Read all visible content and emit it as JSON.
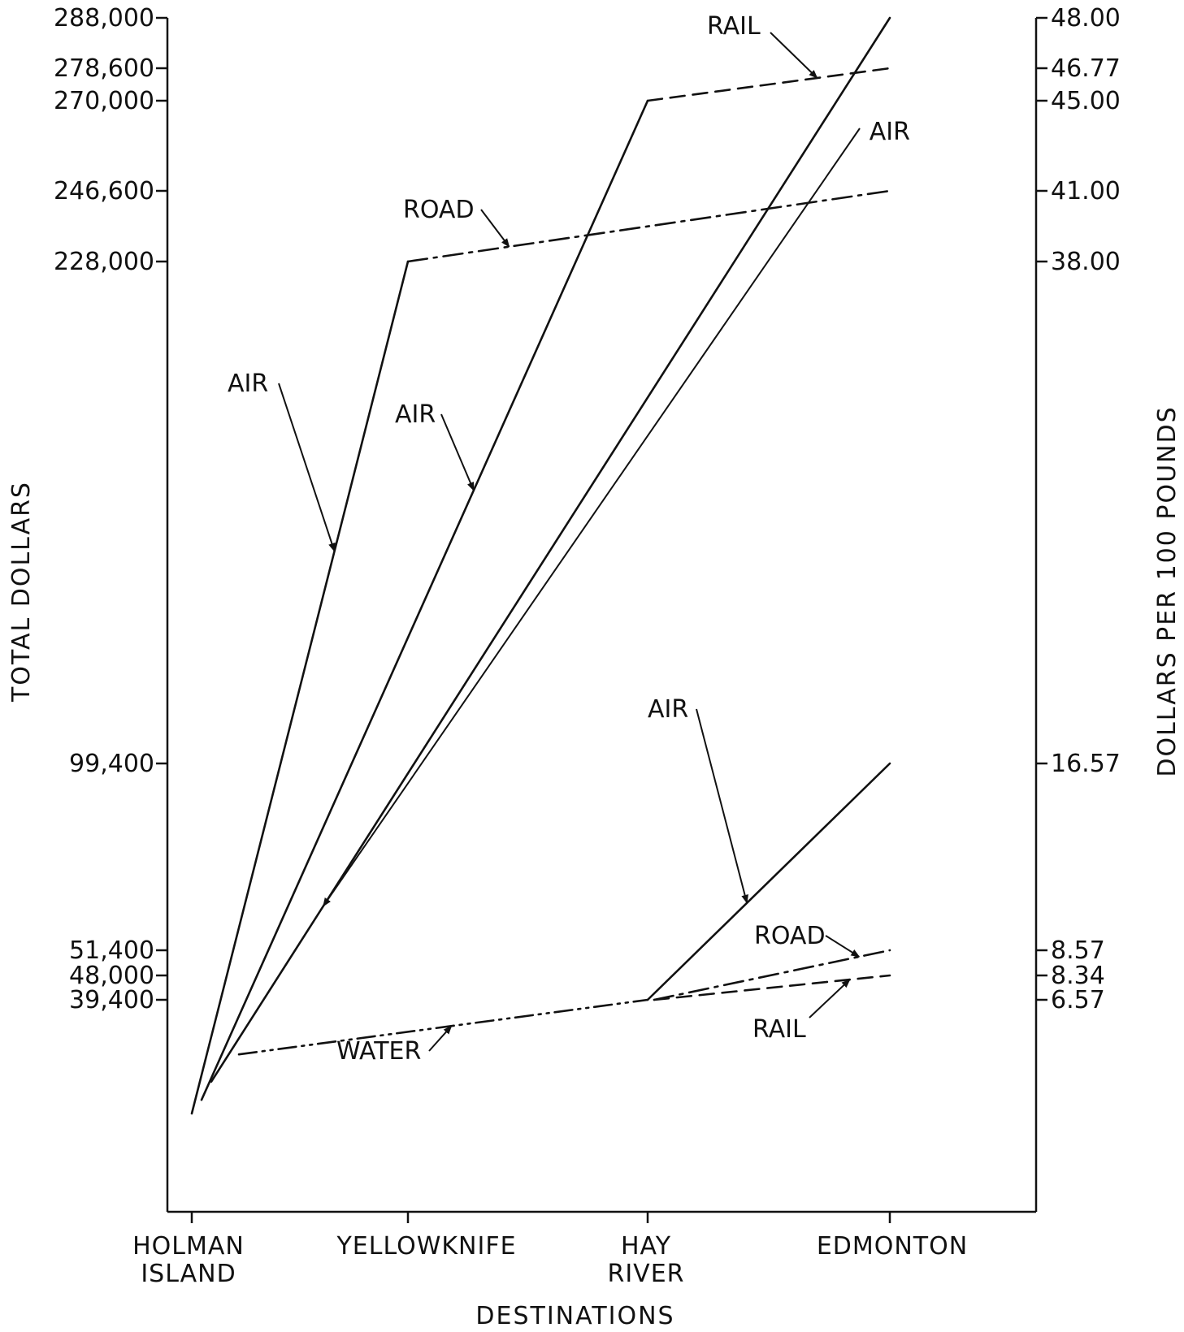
{
  "chart_data": {
    "type": "line",
    "xlabel": "DESTINATIONS",
    "ylabel_left": "TOTAL DOLLARS",
    "ylabel_right": "DOLLARS PER 100 POUNDS",
    "categories": [
      {
        "id": "holman",
        "lines": [
          "HOLMAN",
          "ISLAND"
        ]
      },
      {
        "id": "yellowknife",
        "lines": [
          "YELLOWKNIFE"
        ]
      },
      {
        "id": "hay",
        "lines": [
          "HAY",
          "RIVER"
        ]
      },
      {
        "id": "edmonton",
        "lines": [
          "EDMONTON"
        ]
      }
    ],
    "left_axis_ticks": [
      "288,000",
      "278,600",
      "270,000",
      "246,600",
      "228,000",
      "99,400",
      "51,400",
      "48,000",
      "39,400"
    ],
    "right_axis_ticks": [
      "48.00",
      "46.77",
      "45.00",
      "41.00",
      "38.00",
      "16.57",
      "8.57",
      "8.34",
      "6.57"
    ],
    "series": [
      {
        "label": "AIR",
        "style": "solid",
        "points": [
          [
            "holman",
            -0.25
          ],
          [
            "yellowknife",
            228000
          ]
        ]
      },
      {
        "label": "ROAD",
        "style": "dash-dot",
        "points": [
          [
            "yellowknife",
            228000
          ],
          [
            "edmonton",
            246600
          ]
        ]
      },
      {
        "label": "AIR",
        "style": "solid",
        "points": [
          [
            "holman",
            -0.22
          ],
          [
            "hay",
            270000
          ]
        ]
      },
      {
        "label": "RAIL",
        "style": "dashed",
        "points": [
          [
            "hay",
            270000
          ],
          [
            "edmonton",
            278600
          ]
        ]
      },
      {
        "label": "AIR",
        "style": "solid",
        "points": [
          [
            "holman",
            -0.18
          ],
          [
            "edmonton",
            288000
          ]
        ]
      },
      {
        "label": "WATER",
        "style": "dash-dot-dot",
        "points": [
          [
            "holman",
            -0.12
          ],
          [
            "hay",
            39400
          ]
        ]
      },
      {
        "label": "AIR",
        "style": "solid",
        "points": [
          [
            "hay",
            39400
          ],
          [
            "edmonton",
            99400
          ]
        ]
      },
      {
        "label": "ROAD",
        "style": "dash-dot",
        "points": [
          [
            "hay",
            39400
          ],
          [
            "edmonton",
            51400
          ]
        ]
      },
      {
        "label": "RAIL",
        "style": "dashed",
        "points": [
          [
            "hay",
            39400
          ],
          [
            "edmonton",
            48000
          ]
        ]
      }
    ]
  }
}
